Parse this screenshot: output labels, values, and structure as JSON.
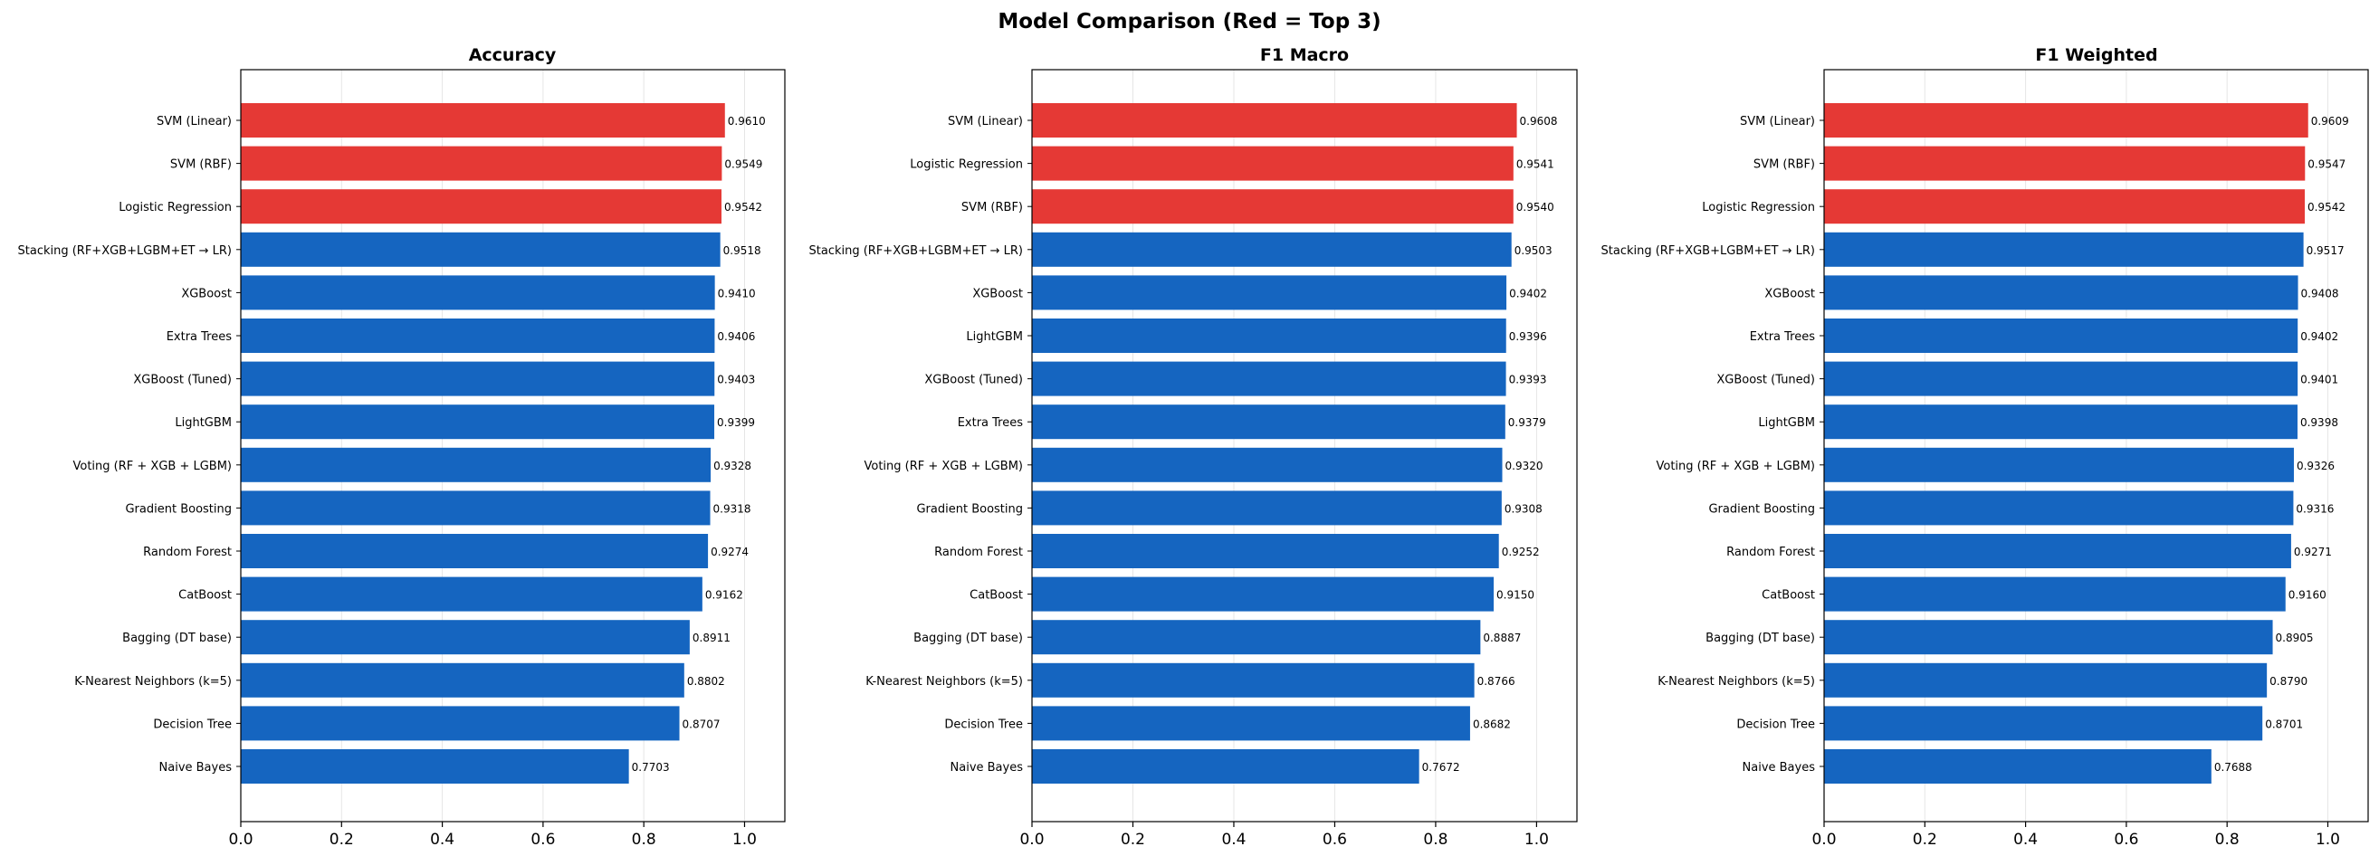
{
  "suptitle": "Model Comparison (Red = Top 3)",
  "colors": {
    "top": "#e53935",
    "rest": "#1565c0",
    "grid": "#e6e6e6",
    "axis": "#000000"
  },
  "chart_data": [
    {
      "type": "bar",
      "orientation": "horizontal",
      "title": "Accuracy",
      "xlim": [
        0,
        1.08
      ],
      "xticks": [
        "0.0",
        "0.2",
        "0.4",
        "0.6",
        "0.8",
        "1.0"
      ],
      "grid": "x",
      "categories": [
        "SVM (Linear)",
        "SVM (RBF)",
        "Logistic Regression",
        "Stacking (RF+XGB+LGBM+ET → LR)",
        "XGBoost",
        "Extra Trees",
        "XGBoost (Tuned)",
        "LightGBM",
        "Voting (RF + XGB + LGBM)",
        "Gradient Boosting",
        "Random Forest",
        "CatBoost",
        "Bagging (DT base)",
        "K-Nearest Neighbors (k=5)",
        "Decision Tree",
        "Naive Bayes"
      ],
      "values": [
        0.961,
        0.9549,
        0.9542,
        0.9518,
        0.941,
        0.9406,
        0.9403,
        0.9399,
        0.9328,
        0.9318,
        0.9274,
        0.9162,
        0.8911,
        0.8802,
        0.8707,
        0.7703
      ],
      "labels": [
        "0.9610",
        "0.9549",
        "0.9542",
        "0.9518",
        "0.9410",
        "0.9406",
        "0.9403",
        "0.9399",
        "0.9328",
        "0.9318",
        "0.9274",
        "0.9162",
        "0.8911",
        "0.8802",
        "0.8707",
        "0.7703"
      ],
      "top_n": 3
    },
    {
      "type": "bar",
      "orientation": "horizontal",
      "title": "F1 Macro",
      "xlim": [
        0,
        1.08
      ],
      "xticks": [
        "0.0",
        "0.2",
        "0.4",
        "0.6",
        "0.8",
        "1.0"
      ],
      "grid": "x",
      "categories": [
        "SVM (Linear)",
        "Logistic Regression",
        "SVM (RBF)",
        "Stacking (RF+XGB+LGBM+ET → LR)",
        "XGBoost",
        "LightGBM",
        "XGBoost (Tuned)",
        "Extra Trees",
        "Voting (RF + XGB + LGBM)",
        "Gradient Boosting",
        "Random Forest",
        "CatBoost",
        "Bagging (DT base)",
        "K-Nearest Neighbors (k=5)",
        "Decision Tree",
        "Naive Bayes"
      ],
      "values": [
        0.9608,
        0.9541,
        0.954,
        0.9503,
        0.9402,
        0.9396,
        0.9393,
        0.9379,
        0.932,
        0.9308,
        0.9252,
        0.915,
        0.8887,
        0.8766,
        0.8682,
        0.7672
      ],
      "labels": [
        "0.9608",
        "0.9541",
        "0.9540",
        "0.9503",
        "0.9402",
        "0.9396",
        "0.9393",
        "0.9379",
        "0.9320",
        "0.9308",
        "0.9252",
        "0.9150",
        "0.8887",
        "0.8766",
        "0.8682",
        "0.7672"
      ],
      "top_n": 3
    },
    {
      "type": "bar",
      "orientation": "horizontal",
      "title": "F1 Weighted",
      "xlim": [
        0,
        1.08
      ],
      "xticks": [
        "0.0",
        "0.2",
        "0.4",
        "0.6",
        "0.8",
        "1.0"
      ],
      "grid": "x",
      "categories": [
        "SVM (Linear)",
        "SVM (RBF)",
        "Logistic Regression",
        "Stacking (RF+XGB+LGBM+ET → LR)",
        "XGBoost",
        "Extra Trees",
        "XGBoost (Tuned)",
        "LightGBM",
        "Voting (RF + XGB + LGBM)",
        "Gradient Boosting",
        "Random Forest",
        "CatBoost",
        "Bagging (DT base)",
        "K-Nearest Neighbors (k=5)",
        "Decision Tree",
        "Naive Bayes"
      ],
      "values": [
        0.9609,
        0.9547,
        0.9542,
        0.9517,
        0.9408,
        0.9402,
        0.9401,
        0.9398,
        0.9326,
        0.9316,
        0.9271,
        0.916,
        0.8905,
        0.879,
        0.8701,
        0.7688
      ],
      "labels": [
        "0.9609",
        "0.9547",
        "0.9542",
        "0.9517",
        "0.9408",
        "0.9402",
        "0.9401",
        "0.9398",
        "0.9326",
        "0.9316",
        "0.9271",
        "0.9160",
        "0.8905",
        "0.8790",
        "0.8701",
        "0.7688"
      ],
      "top_n": 3
    }
  ]
}
